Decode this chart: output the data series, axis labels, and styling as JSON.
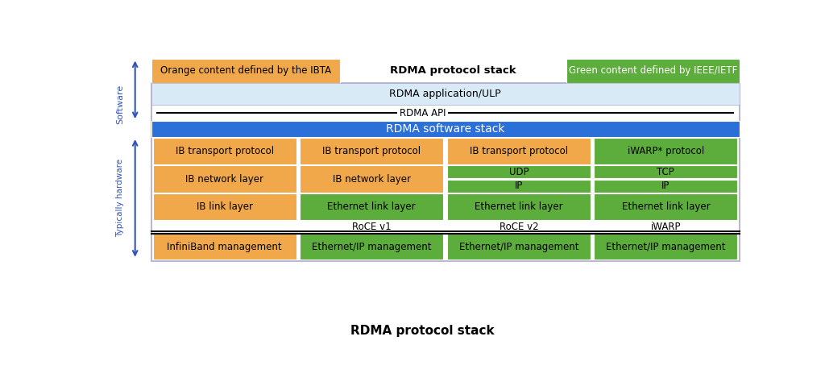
{
  "title": "RDMA protocol stack",
  "orange": "#F0A84A",
  "green": "#5DAD3C",
  "blue": "#2B6FD8",
  "light_blue_bg": "#D9EAF7",
  "white": "#FFFFFF",
  "outer_border": "#AAAACC",
  "legend_orange_text": "Orange content defined by the IBTA",
  "legend_title": "RDMA protocol stack",
  "legend_green_text": "Green content defined by IEEE/IETF",
  "app_ulp_text": "RDMA application/ULP",
  "api_text": "RDMA API",
  "software_stack_text": "RDMA software stack",
  "software_label": "Software",
  "hardware_label": "Typically hardware",
  "label_color": "#3355BB",
  "col_labels": [
    "",
    "RoCE v1",
    "RoCE v2",
    "iWARP"
  ],
  "transport_texts": [
    "IB transport protocol",
    "IB transport protocol",
    "IB transport protocol",
    "iWARP* protocol"
  ],
  "transport_colors": [
    "#F0A84A",
    "#F0A84A",
    "#F0A84A",
    "#5DAD3C"
  ],
  "network_texts_col01": [
    "IB network layer",
    "IB network layer"
  ],
  "network_split_top": [
    "UDP",
    "TCP"
  ],
  "network_split_bot": [
    "IP",
    "IP"
  ],
  "link_texts": [
    "IB link layer",
    "Ethernet link layer",
    "Ethernet link layer",
    "Ethernet link layer"
  ],
  "link_colors": [
    "#F0A84A",
    "#5DAD3C",
    "#5DAD3C",
    "#5DAD3C"
  ],
  "mgmt_texts": [
    "InfiniBand management",
    "Ethernet/IP management",
    "Ethernet/IP management",
    "Ethernet/IP management"
  ],
  "mgmt_colors": [
    "#F0A84A",
    "#5DAD3C",
    "#5DAD3C",
    "#5DAD3C"
  ]
}
